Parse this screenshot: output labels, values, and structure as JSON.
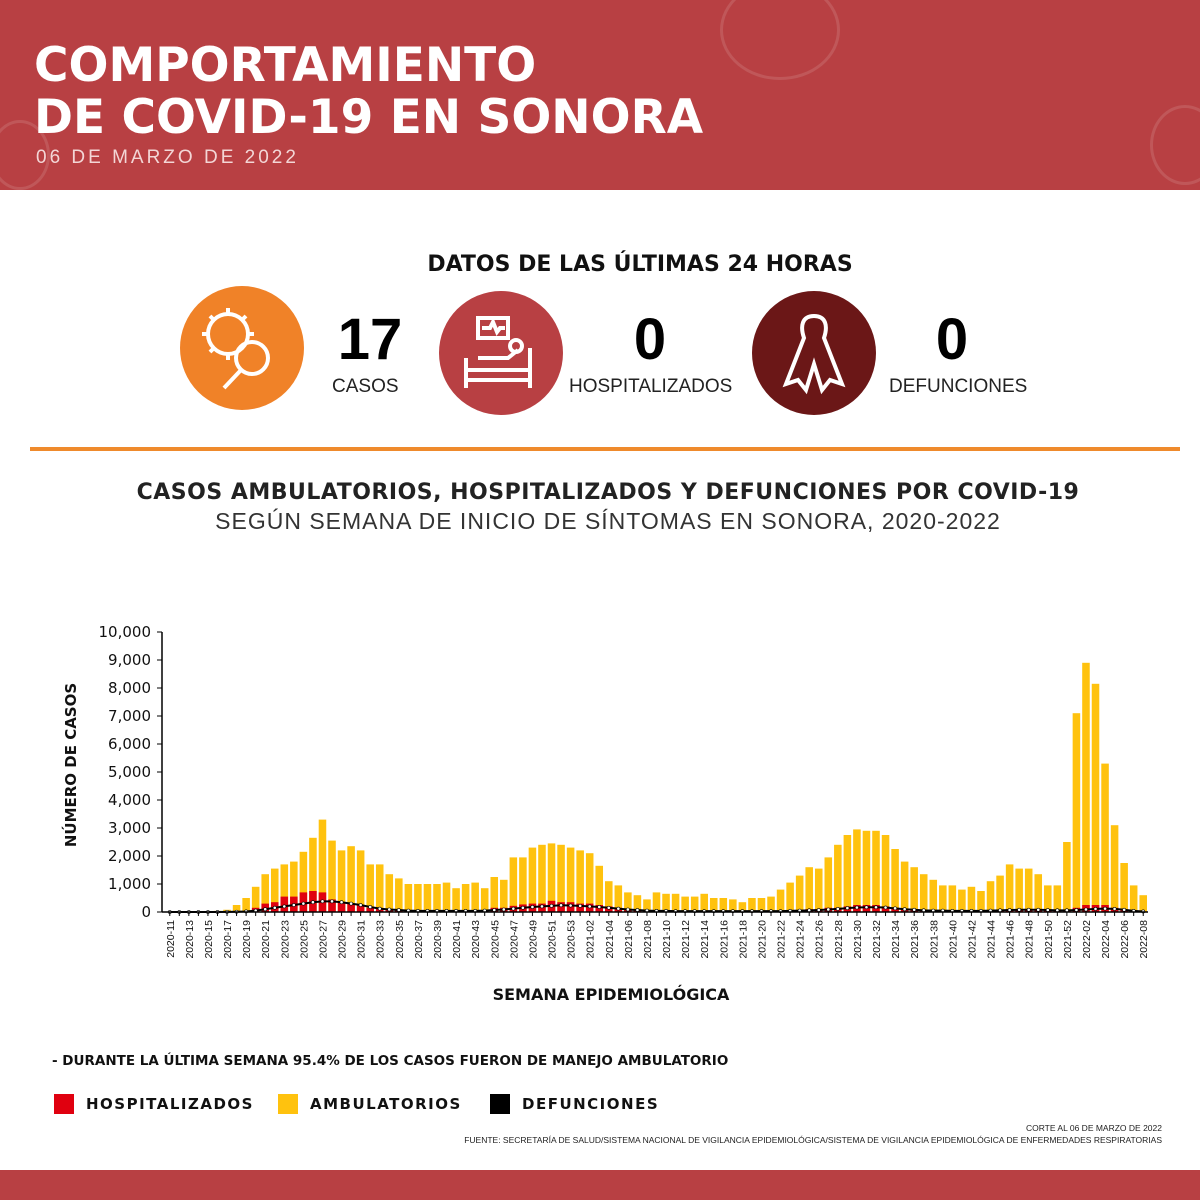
{
  "header": {
    "title_line1": "COMPORTAMIENTO",
    "title_line2": "DE COVID-19 EN SONORA",
    "date": "06 DE MARZO DE 2022"
  },
  "summary": {
    "title": "DATOS DE LAS ÚLTIMAS 24 HORAS",
    "items": [
      {
        "value": "17",
        "label": "CASOS",
        "icon": "virus-magnifier-icon",
        "color": "#f08228"
      },
      {
        "value": "0",
        "label": "HOSPITALIZADOS",
        "icon": "hospital-bed-icon",
        "color": "#b84043"
      },
      {
        "value": "0",
        "label": "DEFUNCIONES",
        "icon": "ribbon-icon",
        "color": "#6b1717"
      }
    ]
  },
  "chart_data": {
    "type": "bar",
    "title": "CASOS AMBULATORIOS, HOSPITALIZADOS Y DEFUNCIONES POR COVID-19",
    "subtitle": "SEGÚN SEMANA DE INICIO DE SÍNTOMAS EN SONORA, 2020-2022",
    "xlabel": "SEMANA EPIDEMIOLÓGICA",
    "ylabel": "NÚMERO DE CASOS",
    "ylim": [
      0,
      10000
    ],
    "yticks": [
      "0",
      "1,000",
      "2,000",
      "3,000",
      "4,000",
      "5,000",
      "6,000",
      "7,000",
      "8,000",
      "9,000",
      "10,000"
    ],
    "stacked": true,
    "colors": {
      "hospitalizados": "#e0000f",
      "ambulatorios": "#ffc20e",
      "defunciones": "#000000"
    },
    "total_cases": [
      0,
      0,
      0,
      0,
      20,
      40,
      80,
      250,
      500,
      900,
      1350,
      1550,
      1700,
      1800,
      2150,
      2650,
      3300,
      2550,
      2200,
      2350,
      2200,
      1700,
      1700,
      1350,
      1200,
      1000,
      1000,
      1000,
      1000,
      1050,
      850,
      1000,
      1050,
      850,
      1250,
      1150,
      1950,
      1950,
      2300,
      2400,
      2450,
      2400,
      2300,
      2200,
      2100,
      1650,
      1100,
      950,
      700,
      600,
      450,
      700,
      650,
      650,
      550,
      550,
      650,
      500,
      500,
      450,
      350,
      500,
      500,
      550,
      800,
      1050,
      1300,
      1600,
      1550,
      1950,
      2400,
      2750,
      2950,
      2900,
      2900,
      2750,
      2250,
      1800,
      1600,
      1350,
      1150,
      950,
      950,
      800,
      900,
      750,
      1100,
      1300,
      1700,
      1550,
      1550,
      1350,
      950,
      950,
      2500,
      7100,
      8900,
      8150,
      5300,
      3100,
      1750,
      950,
      600
    ],
    "series": [
      {
        "name": "HOSPITALIZADOS",
        "values": [
          0,
          0,
          0,
          0,
          0,
          5,
          10,
          20,
          40,
          150,
          300,
          350,
          550,
          550,
          700,
          750,
          700,
          450,
          350,
          300,
          250,
          150,
          120,
          100,
          80,
          60,
          50,
          50,
          50,
          50,
          50,
          60,
          60,
          70,
          150,
          150,
          220,
          270,
          300,
          300,
          400,
          350,
          350,
          300,
          300,
          250,
          200,
          150,
          100,
          80,
          60,
          50,
          50,
          40,
          40,
          40,
          40,
          40,
          40,
          40,
          40,
          40,
          40,
          40,
          50,
          60,
          70,
          100,
          100,
          150,
          150,
          200,
          250,
          250,
          250,
          200,
          150,
          100,
          80,
          60,
          60,
          60,
          60,
          60,
          60,
          60,
          70,
          80,
          100,
          100,
          100,
          80,
          60,
          60,
          80,
          150,
          250,
          250,
          250,
          150,
          80,
          40,
          20
        ]
      },
      {
        "name": "DEFUNCIONES",
        "values": [
          0,
          0,
          0,
          0,
          0,
          0,
          5,
          10,
          20,
          50,
          100,
          150,
          200,
          250,
          300,
          350,
          380,
          380,
          350,
          300,
          250,
          180,
          120,
          90,
          70,
          50,
          40,
          40,
          40,
          40,
          40,
          40,
          40,
          50,
          70,
          90,
          120,
          150,
          180,
          200,
          220,
          240,
          230,
          220,
          200,
          180,
          150,
          120,
          90,
          70,
          50,
          40,
          40,
          30,
          30,
          30,
          30,
          30,
          30,
          30,
          30,
          30,
          30,
          30,
          30,
          40,
          50,
          60,
          70,
          90,
          110,
          140,
          160,
          170,
          170,
          160,
          130,
          100,
          80,
          60,
          50,
          50,
          40,
          40,
          40,
          40,
          50,
          60,
          70,
          80,
          80,
          80,
          70,
          60,
          60,
          70,
          90,
          110,
          120,
          110,
          80,
          40,
          20
        ]
      }
    ],
    "ambulatorios_name": "AMBULATORIOS",
    "weeks_labeled": [
      "2020-11",
      "2020-13",
      "2020-15",
      "2020-17",
      "2020-19",
      "2020-21",
      "2020-23",
      "2020-25",
      "2020-27",
      "2020-29",
      "2020-31",
      "2020-33",
      "2020-35",
      "2020-37",
      "2020-39",
      "2020-41",
      "2020-43",
      "2020-45",
      "2020-47",
      "2020-49",
      "2020-51",
      "2020-53",
      "2021-02",
      "2021-04",
      "2021-06",
      "2021-08",
      "2021-10",
      "2021-12",
      "2021-14",
      "2021-16",
      "2021-18",
      "2021-20",
      "2021-22",
      "2021-24",
      "2021-26",
      "2021-28",
      "2021-30",
      "2021-32",
      "2021-34",
      "2021-36",
      "2021-38",
      "2021-40",
      "2021-42",
      "2021-44",
      "2021-46",
      "2021-48",
      "2021-50",
      "2021-52",
      "2022-02",
      "2022-04",
      "2022-06",
      "2022-08"
    ],
    "legend": "bottom-left"
  },
  "note": "- DURANTE LA ÚLTIMA SEMANA 95.4% DE LOS CASOS FUERON DE MANEJO AMBULATORIO",
  "legend": {
    "hosp": "HOSPITALIZADOS",
    "amb": "AMBULATORIOS",
    "def": "DEFUNCIONES"
  },
  "footer": {
    "cut": "CORTE AL 06 DE MARZO DE 2022",
    "source": "FUENTE: SECRETARÍA DE SALUD/SISTEMA NACIONAL DE VIGILANCIA EPIDEMIOLÓGICA/SISTEMA DE VIGILANCIA EPIDEMIOLÓGICA DE ENFERMEDADES RESPIRATORIAS"
  }
}
